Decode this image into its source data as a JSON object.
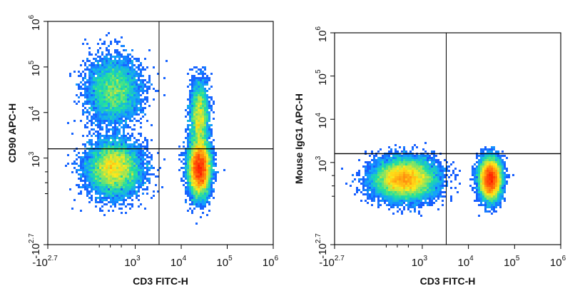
{
  "chart_data": [
    {
      "type": "scatter",
      "style": "density dot plot",
      "xlabel": "CD3 FITC-H",
      "ylabel": "CD90 APC-H",
      "x_ticks": [
        {
          "base": "-10",
          "exp": "2.7"
        },
        {
          "base": "10",
          "exp": "3"
        },
        {
          "base": "10",
          "exp": "4"
        },
        {
          "base": "10",
          "exp": "5"
        },
        {
          "base": "10",
          "exp": "6"
        }
      ],
      "y_ticks": [
        {
          "base": "-10",
          "exp": "2.7"
        },
        {
          "base": "10",
          "exp": "3"
        },
        {
          "base": "10",
          "exp": "4"
        },
        {
          "base": "10",
          "exp": "5"
        },
        {
          "base": "10",
          "exp": "6"
        }
      ],
      "xlim": [
        -501,
        1000000
      ],
      "ylim": [
        -501,
        1000000
      ],
      "scale": "biexponential",
      "quadrant_gate": {
        "x": 3300,
        "y": 1600
      },
      "populations": [
        {
          "x_center": 400,
          "y_center": 600,
          "x_spread": 0.9,
          "y_spread": 0.9,
          "weight": 0.3
        },
        {
          "x_center": 400,
          "y_center": 30000,
          "x_spread": 0.9,
          "y_spread": 1.1,
          "weight": 0.18
        },
        {
          "x_center": 25000,
          "y_center": 600,
          "x_spread": 0.35,
          "y_spread": 0.9,
          "weight": 0.4
        },
        {
          "x_center": 25000,
          "y_center": 8000,
          "x_spread": 0.3,
          "y_spread": 1.2,
          "weight": 0.12
        }
      ]
    },
    {
      "type": "scatter",
      "style": "density dot plot",
      "xlabel": "CD3 FITC-H",
      "ylabel": "Mouse IgG1 APC-H",
      "x_ticks": [
        {
          "base": "-10",
          "exp": "2.7"
        },
        {
          "base": "10",
          "exp": "3"
        },
        {
          "base": "10",
          "exp": "4"
        },
        {
          "base": "10",
          "exp": "5"
        },
        {
          "base": "10",
          "exp": "6"
        }
      ],
      "y_ticks": [
        {
          "base": "-10",
          "exp": "2.7"
        },
        {
          "base": "10",
          "exp": "3"
        },
        {
          "base": "10",
          "exp": "4"
        },
        {
          "base": "10",
          "exp": "5"
        },
        {
          "base": "10",
          "exp": "6"
        }
      ],
      "xlim": [
        -501,
        1000000
      ],
      "ylim": [
        -501,
        1000000
      ],
      "scale": "biexponential",
      "quadrant_gate": {
        "x": 3300,
        "y": 1600
      },
      "populations": [
        {
          "x_center": 450,
          "y_center": 450,
          "x_spread": 1.0,
          "y_spread": 0.7,
          "weight": 0.55
        },
        {
          "x_center": 30000,
          "y_center": 450,
          "x_spread": 0.35,
          "y_spread": 0.7,
          "weight": 0.45
        }
      ]
    }
  ],
  "colors": {
    "density_low": "#1a2cff",
    "density_mid": "#1fe0a0",
    "density_high": "#ffe81a",
    "density_peak": "#ff1a00",
    "axis": "#111111"
  }
}
